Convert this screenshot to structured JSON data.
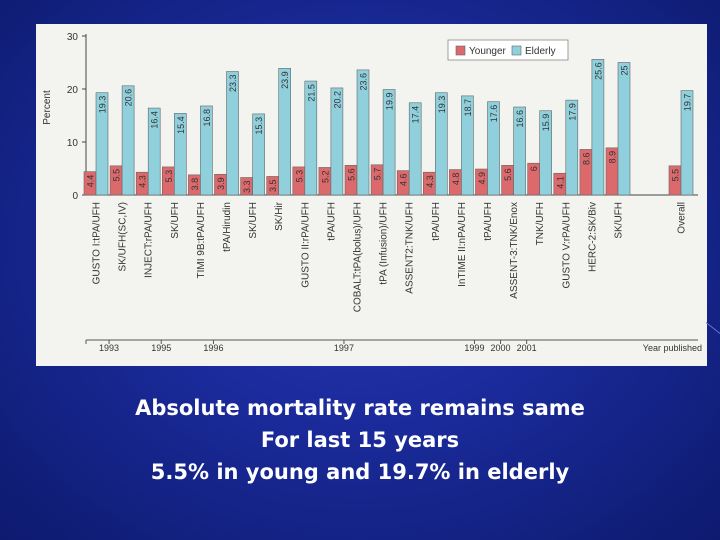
{
  "chart_data": {
    "type": "bar",
    "ylabel": "Percent",
    "ylim": [
      0,
      30
    ],
    "yticks": [
      0,
      10,
      20,
      30
    ],
    "legend_position": "top-right",
    "categories": [
      "GUSTO I:tPA/UFH",
      "SK/UFH(SC,IV)",
      "INJECT:rPA/UFH",
      "SK/UFH",
      "TIMI 9B:tPA/UFH",
      "tPA/Hirudin",
      "SK/UFH",
      "SK/Hir",
      "GUSTO II:rPA/UFH",
      "tPA/UFH",
      "COBALT:tPA(bolus)/UFH",
      "tPA (Infusion)/UFH",
      "ASSENT2:TNK/UFH",
      "tPA/UFH",
      "InTIME II:nPA/UFH",
      "tPA/UFH",
      "ASSENT-3:TNK/Enox",
      "TNK/UFH",
      "GUSTO V:rPA/UFH",
      "HERC-2:SK/Biv",
      "SK/UFH",
      "Overall"
    ],
    "series": [
      {
        "name": "Younger",
        "color": "#dc6a6c",
        "values": [
          4.4,
          5.5,
          4.3,
          5.3,
          3.8,
          3.9,
          3.3,
          3.5,
          5.3,
          5.2,
          5.6,
          5.7,
          4.6,
          4.3,
          4.8,
          4.9,
          5.6,
          6.0,
          4.1,
          8.6,
          8.9,
          5.5
        ]
      },
      {
        "name": "Elderly",
        "color": "#8fd0dc",
        "values": [
          19.3,
          20.6,
          16.4,
          15.4,
          16.8,
          23.3,
          15.3,
          23.9,
          21.5,
          20.2,
          23.6,
          19.9,
          17.4,
          19.3,
          18.7,
          17.6,
          16.6,
          15.9,
          17.9,
          25.6,
          25,
          19.7
        ]
      }
    ],
    "year_axis": {
      "label": "Year published",
      "years": [
        {
          "year": "1993",
          "after_category": 0
        },
        {
          "year": "1995",
          "after_category": 2
        },
        {
          "year": "1996",
          "after_category": 4
        },
        {
          "year": "1997",
          "after_category": 9
        },
        {
          "year": "1999",
          "after_category": 14
        },
        {
          "year": "2000",
          "after_category": 15
        },
        {
          "year": "2001",
          "after_category": 16
        }
      ]
    }
  },
  "caption": {
    "line1": "Absolute mortality rate remains same",
    "line2": "For last 15 years",
    "line3": "5.5% in young and 19.7% in elderly"
  }
}
